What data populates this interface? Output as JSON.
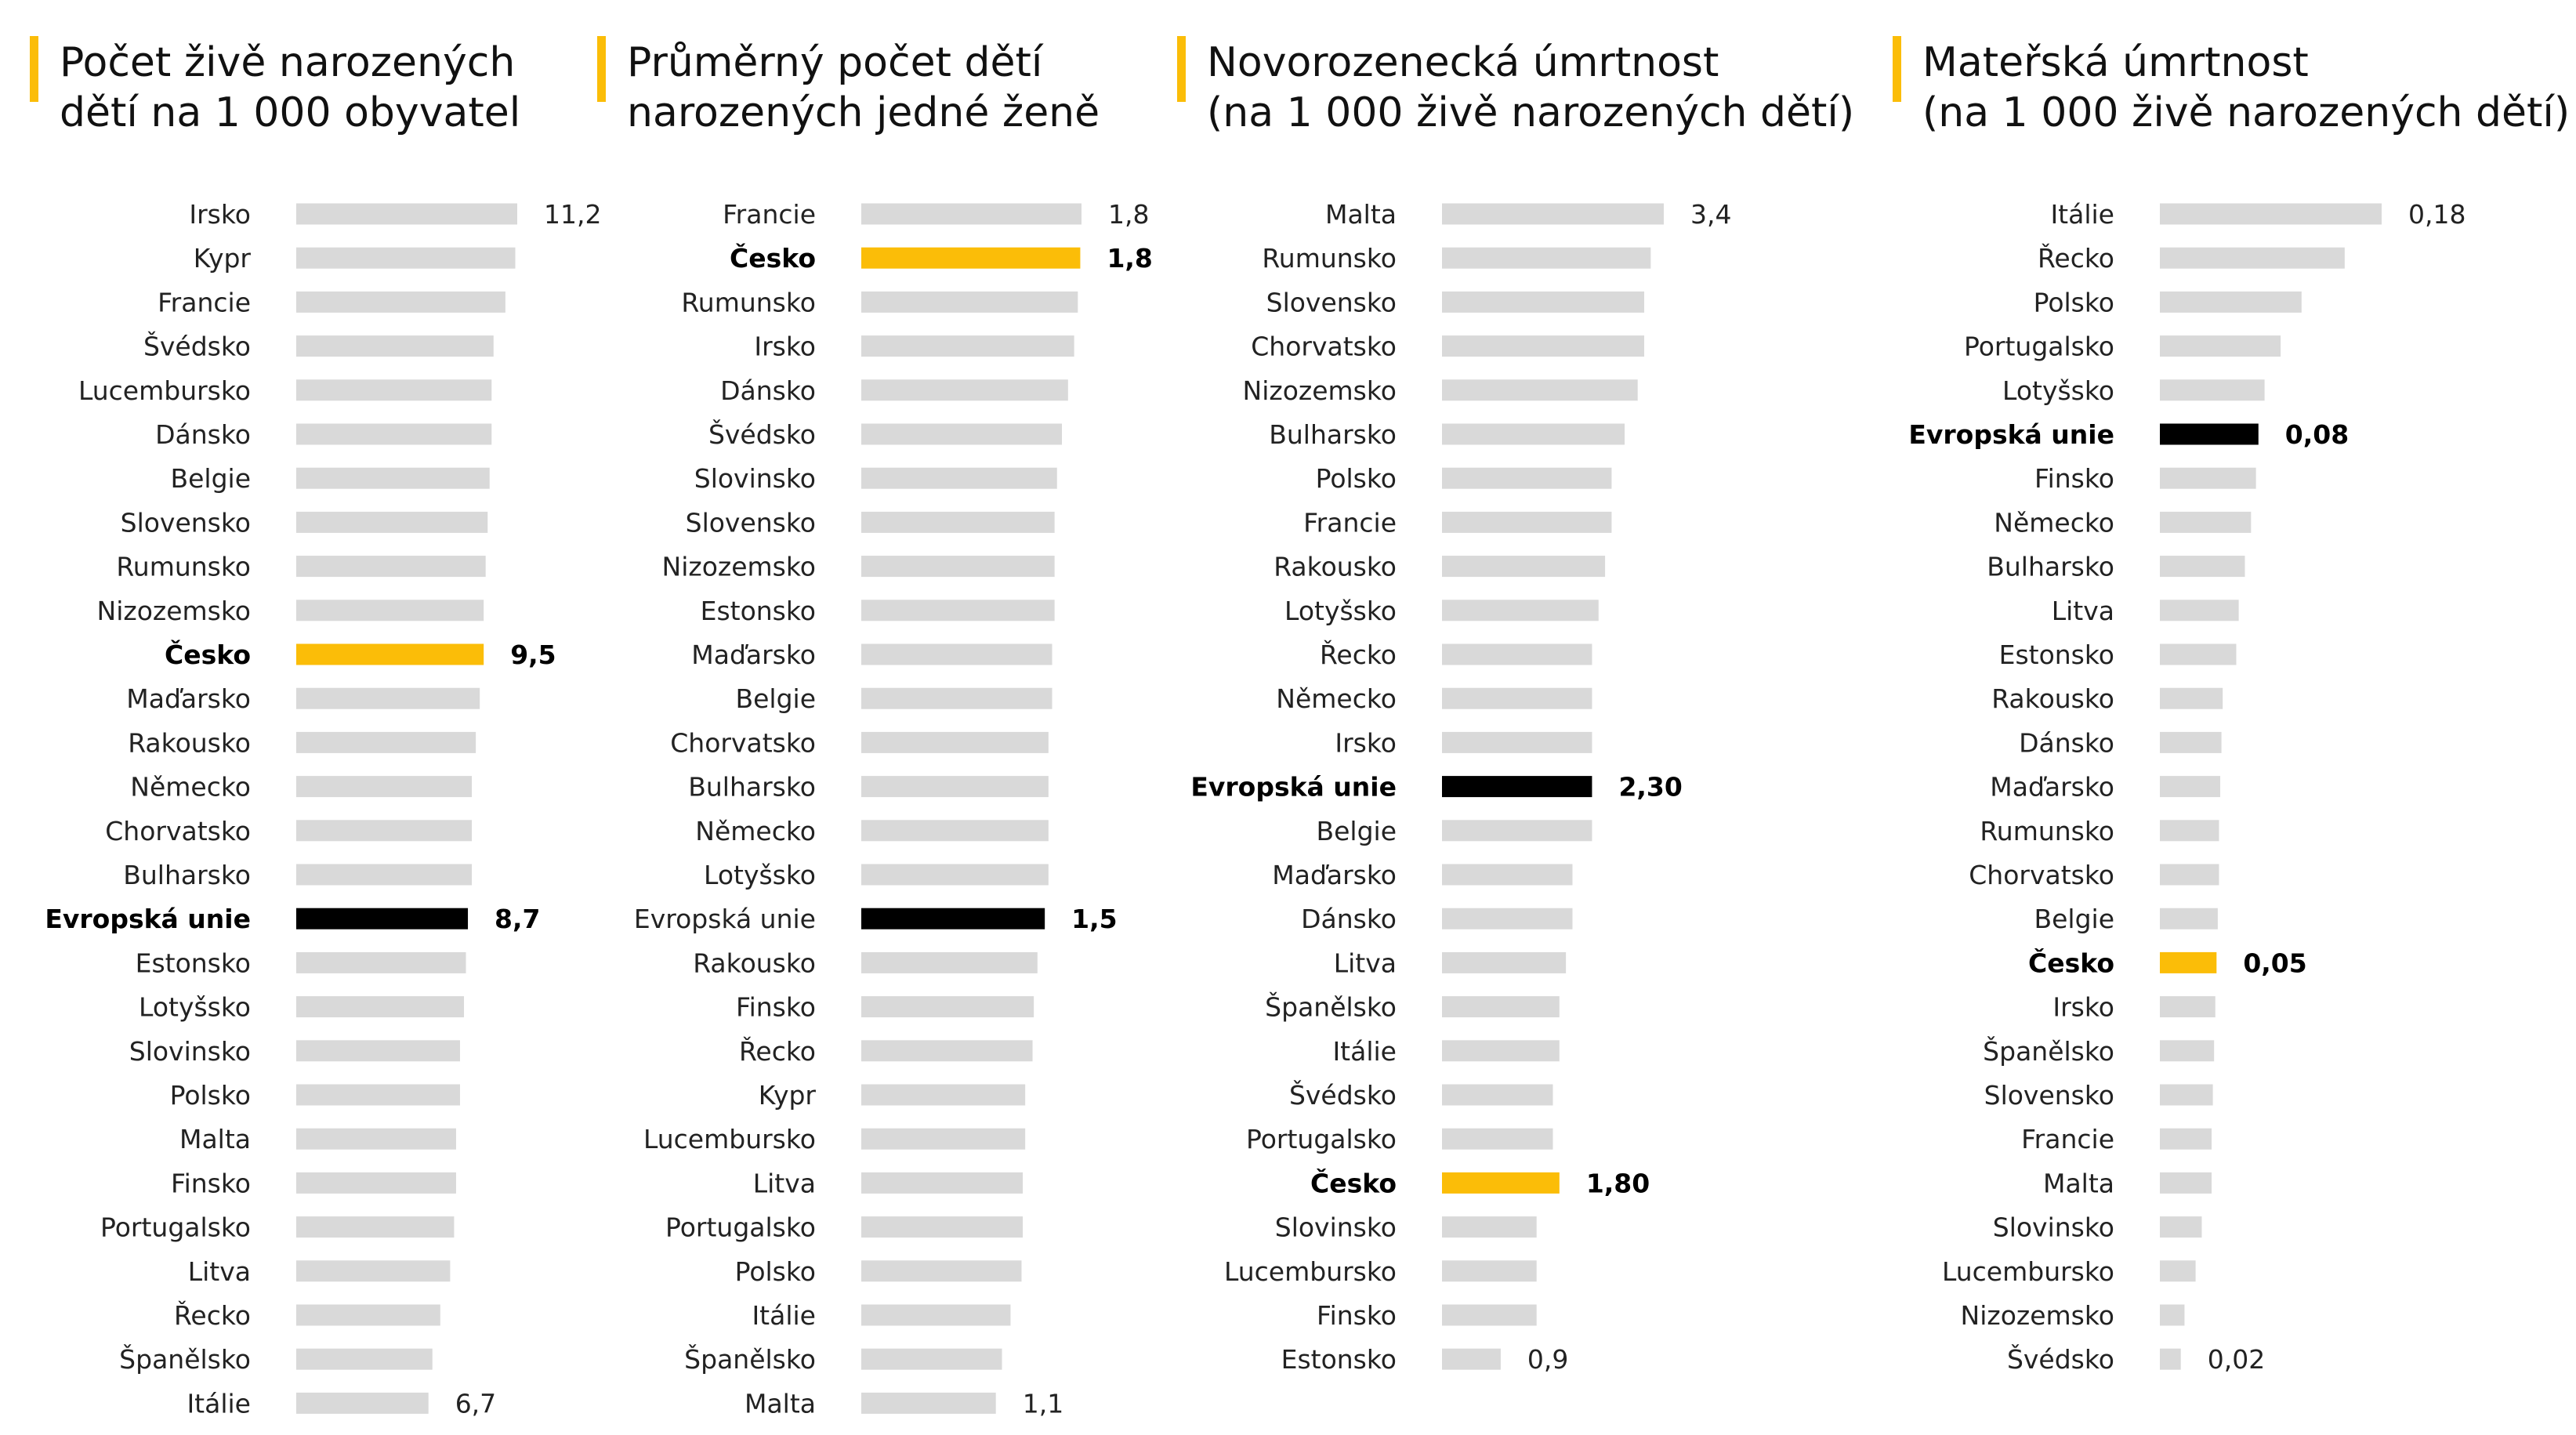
{
  "colors": {
    "default": "#d9d9d9",
    "highlight": "#fbbd08",
    "eu": "#000000",
    "accent": "#fbbd08"
  },
  "chart_data": [
    {
      "type": "bar",
      "orientation": "horizontal",
      "title": [
        "Počet živě narozených",
        "dětí na 1 000 obyvatel"
      ],
      "categories": [
        "Irsko",
        "Kypr",
        "Francie",
        "Švédsko",
        "Lucembursko",
        "Dánsko",
        "Belgie",
        "Slovensko",
        "Rumunsko",
        "Nizozemsko",
        "Česko",
        "Maďarsko",
        "Rakousko",
        "Německo",
        "Chorvatsko",
        "Bulharsko",
        "Evropská unie",
        "Estonsko",
        "Lotyšsko",
        "Slovinsko",
        "Polsko",
        "Malta",
        "Finsko",
        "Portugalsko",
        "Litva",
        "Řecko",
        "Španělsko",
        "Itálie"
      ],
      "values": [
        11.2,
        11.1,
        10.6,
        10.0,
        9.9,
        9.9,
        9.8,
        9.7,
        9.6,
        9.5,
        9.5,
        9.3,
        9.1,
        8.9,
        8.9,
        8.9,
        8.7,
        8.6,
        8.5,
        8.3,
        8.3,
        8.1,
        8.1,
        8.0,
        7.8,
        7.3,
        6.9,
        6.7
      ],
      "xlim": [
        0,
        11.2
      ],
      "value_labels": {
        "0": "11,2",
        "10": "9,5",
        "16": "8,7",
        "27": "6,7"
      },
      "highlight": {
        "10": "highlight",
        "16": "eu"
      },
      "bold": [
        10,
        16
      ]
    },
    {
      "type": "bar",
      "orientation": "horizontal",
      "title": [
        "Průměrný počet dětí",
        "narozených jedné ženě"
      ],
      "categories": [
        "Francie",
        "Česko",
        "Rumunsko",
        "Irsko",
        "Dánsko",
        "Švédsko",
        "Slovinsko",
        "Slovensko",
        "Nizozemsko",
        "Estonsko",
        "Maďarsko",
        "Belgie",
        "Chorvatsko",
        "Bulharsko",
        "Německo",
        "Lotyšsko",
        "Evropská unie",
        "Rakousko",
        "Finsko",
        "Řecko",
        "Kypr",
        "Lucembursko",
        "Litva",
        "Portugalsko",
        "Polsko",
        "Itálie",
        "Španělsko",
        "Malta"
      ],
      "values": [
        1.8,
        1.79,
        1.77,
        1.74,
        1.69,
        1.64,
        1.6,
        1.58,
        1.58,
        1.58,
        1.56,
        1.56,
        1.53,
        1.53,
        1.53,
        1.53,
        1.5,
        1.44,
        1.41,
        1.4,
        1.34,
        1.34,
        1.32,
        1.32,
        1.31,
        1.22,
        1.15,
        1.1
      ],
      "xlim": [
        0,
        1.8
      ],
      "value_labels": {
        "0": "1,8",
        "1": "1,8",
        "16": "1,5",
        "27": "1,1"
      },
      "highlight": {
        "1": "highlight",
        "16": "eu"
      },
      "bold": [
        1
      ]
    },
    {
      "type": "bar",
      "orientation": "horizontal",
      "title": [
        "Novorozenecká úmrtnost",
        "(na 1 000 živě narozených dětí)"
      ],
      "categories": [
        "Malta",
        "Rumunsko",
        "Slovensko",
        "Chorvatsko",
        "Nizozemsko",
        "Bulharsko",
        "Polsko",
        "Francie",
        "Rakousko",
        "Lotyšsko",
        "Řecko",
        "Německo",
        "Irsko",
        "Evropská unie",
        "Belgie",
        "Maďarsko",
        "Dánsko",
        "Litva",
        "Španělsko",
        "Itálie",
        "Švédsko",
        "Portugalsko",
        "Česko",
        "Slovinsko",
        "Lucembursko",
        "Finsko",
        "Estonsko"
      ],
      "values": [
        3.4,
        3.2,
        3.1,
        3.1,
        3.0,
        2.8,
        2.6,
        2.6,
        2.5,
        2.4,
        2.3,
        2.3,
        2.3,
        2.3,
        2.3,
        2.0,
        2.0,
        1.9,
        1.8,
        1.8,
        1.7,
        1.7,
        1.8,
        1.45,
        1.45,
        1.45,
        0.9
      ],
      "xlim": [
        0,
        3.4
      ],
      "value_labels": {
        "0": "3,4",
        "13": "2,30",
        "22": "1,80",
        "26": "0,9"
      },
      "highlight": {
        "13": "eu",
        "22": "highlight"
      },
      "bold": [
        13,
        22
      ]
    },
    {
      "type": "bar",
      "orientation": "horizontal",
      "title": [
        "Mateřská úmrtnost",
        "(na 1 000 živě narozených dětí)"
      ],
      "categories": [
        "Itálie",
        "Řecko",
        "Polsko",
        "Portugalsko",
        "Lotyšsko",
        "Evropská unie",
        "Finsko",
        "Německo",
        "Bulharsko",
        "Litva",
        "Estonsko",
        "Rakousko",
        "Dánsko",
        "Maďarsko",
        "Rumunsko",
        "Chorvatsko",
        "Belgie",
        "Česko",
        "Irsko",
        "Španělsko",
        "Slovensko",
        "Francie",
        "Malta",
        "Slovinsko",
        "Lucembursko",
        "Nizozemsko",
        "Švédsko"
      ],
      "values": [
        0.18,
        0.15,
        0.115,
        0.098,
        0.085,
        0.08,
        0.078,
        0.074,
        0.069,
        0.064,
        0.062,
        0.051,
        0.05,
        0.049,
        0.048,
        0.048,
        0.047,
        0.046,
        0.045,
        0.044,
        0.043,
        0.042,
        0.042,
        0.034,
        0.029,
        0.02,
        0.017
      ],
      "xlim": [
        0,
        0.18
      ],
      "value_labels": {
        "0": "0,18",
        "5": "0,08",
        "17": "0,05",
        "26": "0,02"
      },
      "highlight": {
        "5": "eu",
        "17": "highlight"
      },
      "bold": [
        5,
        17
      ]
    }
  ]
}
